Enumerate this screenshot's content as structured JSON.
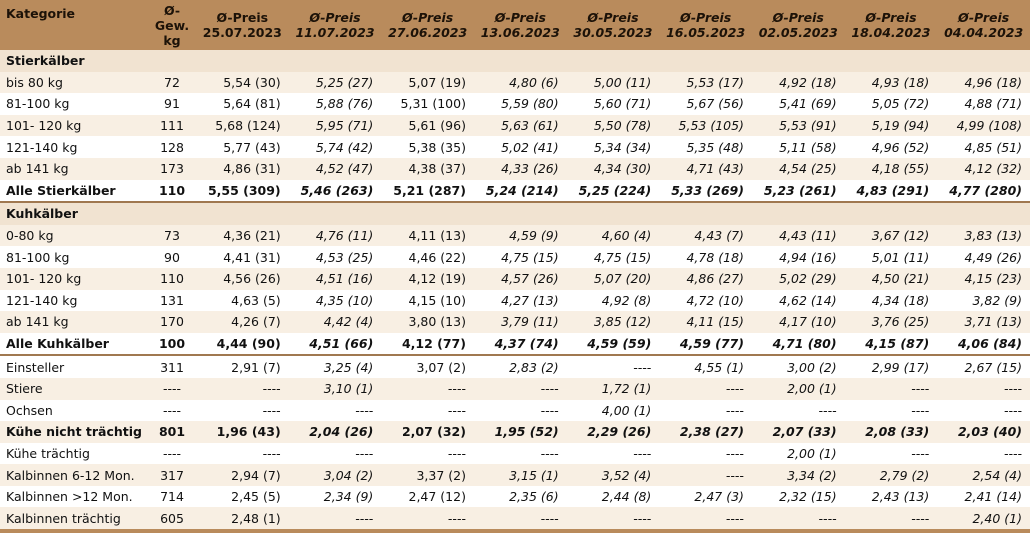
{
  "headers": [
    {
      "line1": "Kategorie",
      "line2": ""
    },
    {
      "line1": "Ø-Gew.",
      "line2": "kg"
    },
    {
      "line1": "Ø-Preis",
      "line2": "25.07.2023"
    },
    {
      "line1": "Ø-Preis",
      "line2": "11.07.2023"
    },
    {
      "line1": "Ø-Preis",
      "line2": "27.06.2023"
    },
    {
      "line1": "Ø-Preis",
      "line2": "13.06.2023"
    },
    {
      "line1": "Ø-Preis",
      "line2": "30.05.2023"
    },
    {
      "line1": "Ø-Preis",
      "line2": "16.05.2023"
    },
    {
      "line1": "Ø-Preis",
      "line2": "02.05.2023"
    },
    {
      "line1": "Ø-Preis",
      "line2": "18.04.2023"
    },
    {
      "line1": "Ø-Preis",
      "line2": "04.04.2023"
    }
  ],
  "rows": [
    {
      "kind": "section",
      "cells": [
        "Stierkälber",
        "",
        "",
        "",
        "",
        "",
        "",
        "",
        "",
        "",
        ""
      ]
    },
    {
      "kind": "data",
      "cells": [
        "bis 80 kg",
        "72",
        "5,54 (30)",
        "5,25 (27)",
        "5,07 (19)",
        "4,80 (6)",
        "5,00 (11)",
        "5,53 (17)",
        "4,92 (18)",
        "4,93 (18)",
        "4,96 (18)"
      ]
    },
    {
      "kind": "data",
      "cells": [
        "81-100 kg",
        "91",
        "5,64 (81)",
        "5,88 (76)",
        "5,31 (100)",
        "5,59 (80)",
        "5,60 (71)",
        "5,67 (56)",
        "5,41 (69)",
        "5,05 (72)",
        "4,88 (71)"
      ]
    },
    {
      "kind": "data",
      "cells": [
        "101- 120 kg",
        "111",
        "5,68 (124)",
        "5,95 (71)",
        "5,61 (96)",
        "5,63 (61)",
        "5,50 (78)",
        "5,53 (105)",
        "5,53 (91)",
        "5,19 (94)",
        "4,99 (108)"
      ]
    },
    {
      "kind": "data",
      "cells": [
        "121-140 kg",
        "128",
        "5,77 (43)",
        "5,74 (42)",
        "5,38 (35)",
        "5,02 (41)",
        "5,34 (34)",
        "5,35 (48)",
        "5,11 (58)",
        "4,96 (52)",
        "4,85 (51)"
      ]
    },
    {
      "kind": "data",
      "cells": [
        "ab 141 kg",
        "173",
        "4,86 (31)",
        "4,52 (47)",
        "4,38 (37)",
        "4,33 (26)",
        "4,34 (30)",
        "4,71 (43)",
        "4,54 (25)",
        "4,18 (55)",
        "4,12 (32)"
      ]
    },
    {
      "kind": "total",
      "cells": [
        "Alle Stierkälber",
        "110",
        "5,55 (309)",
        "5,46 (263)",
        "5,21 (287)",
        "5,24 (214)",
        "5,25 (224)",
        "5,33 (269)",
        "5,23 (261)",
        "4,83 (291)",
        "4,77 (280)"
      ]
    },
    {
      "kind": "section",
      "cells": [
        "Kuhkälber",
        "",
        "",
        "",
        "",
        "",
        "",
        "",
        "",
        "",
        ""
      ]
    },
    {
      "kind": "data",
      "cells": [
        "0-80 kg",
        "73",
        "4,36 (21)",
        "4,76 (11)",
        "4,11 (13)",
        "4,59 (9)",
        "4,60 (4)",
        "4,43 (7)",
        "4,43 (11)",
        "3,67 (12)",
        "3,83 (13)"
      ]
    },
    {
      "kind": "data",
      "cells": [
        "81-100 kg",
        "90",
        "4,41 (31)",
        "4,53 (25)",
        "4,46 (22)",
        "4,75 (15)",
        "4,75 (15)",
        "4,78 (18)",
        "4,94 (16)",
        "5,01 (11)",
        "4,49 (26)"
      ]
    },
    {
      "kind": "data",
      "cells": [
        "101- 120 kg",
        "110",
        "4,56 (26)",
        "4,51 (16)",
        "4,12 (19)",
        "4,57 (26)",
        "5,07 (20)",
        "4,86 (27)",
        "5,02 (29)",
        "4,50 (21)",
        "4,15 (23)"
      ]
    },
    {
      "kind": "data",
      "cells": [
        "121-140 kg",
        "131",
        "4,63 (5)",
        "4,35 (10)",
        "4,15 (10)",
        "4,27 (13)",
        "4,92 (8)",
        "4,72 (10)",
        "4,62 (14)",
        "4,34 (18)",
        "3,82 (9)"
      ]
    },
    {
      "kind": "data",
      "cells": [
        "ab 141 kg",
        "170",
        "4,26 (7)",
        "4,42 (4)",
        "3,80 (13)",
        "3,79 (11)",
        "3,85 (12)",
        "4,11 (15)",
        "4,17 (10)",
        "3,76 (25)",
        "3,71 (13)"
      ]
    },
    {
      "kind": "total",
      "cells": [
        "Alle Kuhkälber",
        "100",
        "4,44 (90)",
        "4,51 (66)",
        "4,12 (77)",
        "4,37 (74)",
        "4,59 (59)",
        "4,59 (77)",
        "4,71 (80)",
        "4,15 (87)",
        "4,06 (84)"
      ]
    },
    {
      "kind": "data",
      "cells": [
        "Einsteller",
        "311",
        "2,91 (7)",
        "3,25 (4)",
        "3,07 (2)",
        "2,83 (2)",
        "----",
        "4,55 (1)",
        "3,00 (2)",
        "2,99 (17)",
        "2,67 (15)"
      ]
    },
    {
      "kind": "data",
      "cells": [
        "Stiere",
        "----",
        "----",
        "3,10 (1)",
        "----",
        "----",
        "1,72 (1)",
        "----",
        "2,00 (1)",
        "----",
        "----"
      ]
    },
    {
      "kind": "data",
      "cells": [
        "Ochsen",
        "----",
        "----",
        "----",
        "----",
        "----",
        "4,00 (1)",
        "----",
        "----",
        "----",
        "----"
      ]
    },
    {
      "kind": "bold",
      "cells": [
        "Kühe nicht trächtig",
        "801",
        "1,96 (43)",
        "2,04 (26)",
        "2,07 (32)",
        "1,95 (52)",
        "2,29 (26)",
        "2,38 (27)",
        "2,07 (33)",
        "2,08 (33)",
        "2,03 (40)"
      ]
    },
    {
      "kind": "data",
      "cells": [
        "Kühe trächtig",
        "----",
        "----",
        "----",
        "----",
        "----",
        "----",
        "----",
        "2,00 (1)",
        "----",
        "----"
      ]
    },
    {
      "kind": "data",
      "cells": [
        "Kalbinnen 6-12 Mon.",
        "317",
        "2,94 (7)",
        "3,04 (2)",
        "3,37 (2)",
        "3,15 (1)",
        "3,52 (4)",
        "----",
        "3,34 (2)",
        "2,79 (2)",
        "2,54 (4)"
      ]
    },
    {
      "kind": "data",
      "cells": [
        "Kalbinnen >12 Mon.",
        "714",
        "2,45 (5)",
        "2,34 (9)",
        "2,47 (12)",
        "2,35 (6)",
        "2,44 (8)",
        "2,47 (3)",
        "2,32 (15)",
        "2,43 (13)",
        "2,41 (14)"
      ]
    },
    {
      "kind": "data",
      "cells": [
        "Kalbinnen trächtig",
        "605",
        "2,48 (1)",
        "----",
        "----",
        "----",
        "----",
        "----",
        "----",
        "----",
        "2,40 (1)"
      ]
    }
  ]
}
